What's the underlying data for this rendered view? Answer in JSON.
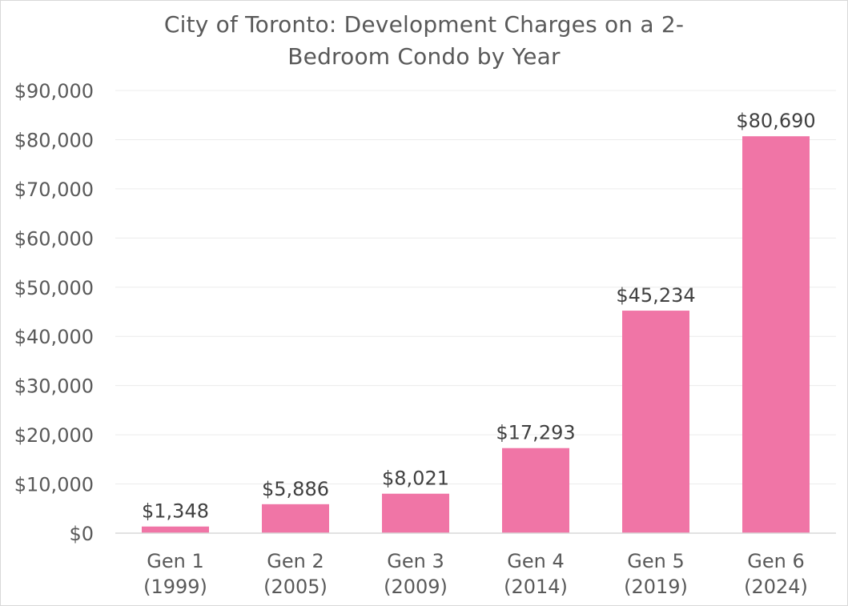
{
  "chart_data": {
    "type": "bar",
    "title_line1": "City of Toronto: Development Charges on a 2-",
    "title_line2": "Bedroom Condo by Year",
    "xlabel": "",
    "ylabel": "",
    "categories": [
      [
        "Gen 1",
        "(1999)"
      ],
      [
        "Gen 2",
        "(2005)"
      ],
      [
        "Gen 3",
        "(2009)"
      ],
      [
        "Gen 4",
        "(2014)"
      ],
      [
        "Gen 5",
        "(2019)"
      ],
      [
        "Gen 6",
        "(2024)"
      ]
    ],
    "values": [
      1348,
      5886,
      8021,
      17293,
      45234,
      80690
    ],
    "data_labels": [
      "$1,348",
      "$5,886",
      "$8,021",
      "$17,293",
      "$45,234",
      "$80,690"
    ],
    "ylim": [
      0,
      90000
    ],
    "y_ticks": [
      0,
      10000,
      20000,
      30000,
      40000,
      50000,
      60000,
      70000,
      80000,
      90000
    ],
    "y_tick_labels": [
      "$0",
      "$10,000",
      "$20,000",
      "$30,000",
      "$40,000",
      "$50,000",
      "$60,000",
      "$70,000",
      "$80,000",
      "$90,000"
    ],
    "grid": true,
    "legend": "none",
    "bar_color": "#f075a6",
    "grid_color": "#ececec",
    "axis_color": "#d9d9d9"
  }
}
